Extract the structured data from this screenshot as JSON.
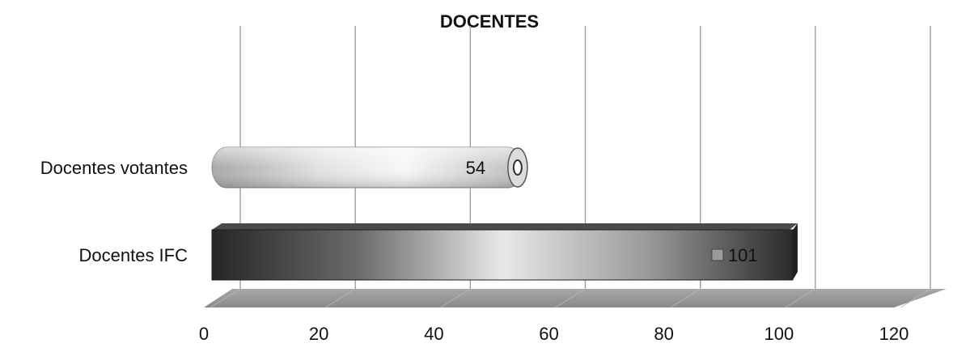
{
  "chart_data": {
    "type": "bar",
    "orientation": "horizontal",
    "style": "3d-cylinder",
    "title": "DOCENTES",
    "categories": [
      "Docentes votantes",
      "Docentes IFC"
    ],
    "values": [
      54,
      101
    ],
    "data_labels": [
      "54",
      "101"
    ],
    "xlim": [
      0,
      120
    ],
    "x_ticks": [
      "0",
      "20",
      "40",
      "60",
      "80",
      "100",
      "120"
    ],
    "grid": true,
    "legend": "none",
    "colors": {
      "bar_light": "#f2f2f2",
      "bar_mid": "#b8b8b8",
      "bar_dark": "#3a3a3a",
      "floor": "#9a9a9a",
      "grid": "#9e9e9e"
    }
  }
}
